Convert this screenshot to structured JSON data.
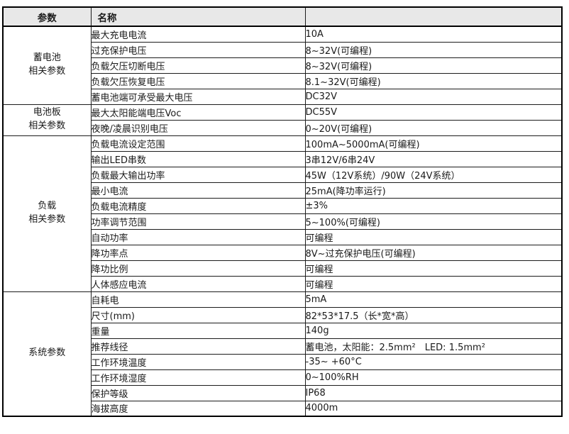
{
  "table": {
    "header": {
      "param_col": "参数",
      "name_col": "名称",
      "value_col": ""
    },
    "groups": [
      {
        "label_lines": [
          "蓄电池",
          "相关参数"
        ],
        "rows": [
          {
            "name": "最大充电电流",
            "value": "10A"
          },
          {
            "name": "过充保护电压",
            "value": "8~32V(可编程)"
          },
          {
            "name": "负载欠压切断电压",
            "value": "8~32V(可编程)"
          },
          {
            "name": "负载欠压恢复电压",
            "value": "8.1~32V(可编程)"
          },
          {
            "name": "蓄电池端可承受最大电压",
            "value": "DC32V"
          }
        ]
      },
      {
        "label_lines": [
          "电池板",
          "相关参数"
        ],
        "rows": [
          {
            "name": "最大太阳能端电压Voc",
            "value": "DC55V"
          },
          {
            "name": "夜晚/凌晨识别电压",
            "value": "0~20V(可编程)"
          }
        ]
      },
      {
        "label_lines": [
          "负载",
          "相关参数"
        ],
        "rows": [
          {
            "name": "负载电流设定范围",
            "value": "100mA~5000mA(可编程)"
          },
          {
            "name": "输出LED串数",
            "value": "3串12V/6串24V"
          },
          {
            "name": "负载最大输出功率",
            "value": "45W（12V系统）/90W（24V系统）"
          },
          {
            "name": "最小电流",
            "value": "25mA(降功率运行)"
          },
          {
            "name": "负载电流精度",
            "value": "±3%"
          },
          {
            "name": "功率调节范围",
            "value": "5~100%(可编程)"
          },
          {
            "name": "自动功率",
            "value": "可编程"
          },
          {
            "name": "降功率点",
            "value": "8V~过充保护电压(可编程)"
          },
          {
            "name": "降功比例",
            "value": "可编程"
          },
          {
            "name": "人体感应电流",
            "value": "可编程"
          }
        ]
      },
      {
        "label_lines": [
          "系统参数"
        ],
        "rows": [
          {
            "name": "自耗电",
            "value": "5mA"
          },
          {
            "name": "尺寸(mm)",
            "value": "82*53*17.5（长*宽*高）"
          },
          {
            "name": "重量",
            "value": "140g"
          },
          {
            "name": "推荐线径",
            "value": "蓄电池，太阳能：2.5mm²　LED: 1.5mm²"
          },
          {
            "name": "工作环境温度",
            "value": "-35~ +60°C"
          },
          {
            "name": "工作环境湿度",
            "value": "0~100%RH"
          },
          {
            "name": "保护等级",
            "value": "IP68"
          },
          {
            "name": "海拔高度",
            "value": "4000m"
          }
        ]
      }
    ]
  }
}
